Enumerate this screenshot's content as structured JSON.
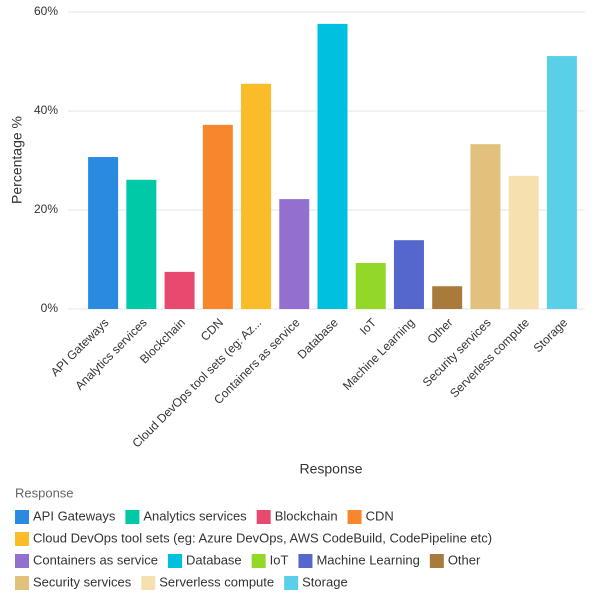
{
  "chart_data": {
    "type": "bar",
    "y_label": "Percentage %",
    "x_label": "Response",
    "legend_title": "Response",
    "categories": [
      "API Gateways",
      "Analytics services",
      "Blockchain",
      "CDN",
      "Cloud DevOps tool sets (eg: Azure DevOps, AWS CodeBuild, CodePipeline etc)",
      "Containers as service",
      "Database",
      "IoT",
      "Machine Learning",
      "Other",
      "Security services",
      "Serverless compute",
      "Storage"
    ],
    "x_tick_labels": [
      "API Gateways",
      "Analytics services",
      "Blockchain",
      "CDN",
      "Cloud DevOps tool sets (eg: Az...",
      "Containers as service",
      "Database",
      "IoT",
      "Machine Learning",
      "Other",
      "Security services",
      "Serverless compute",
      "Storage"
    ],
    "values": [
      30.7,
      26.1,
      7.5,
      37.2,
      45.5,
      22.2,
      57.6,
      9.3,
      13.9,
      4.6,
      33.3,
      26.9,
      51.1
    ],
    "colors": [
      "#2a8ae0",
      "#00c9a7",
      "#e84a6f",
      "#f8862c",
      "#fbbc2a",
      "#9370cf",
      "#00c0e0",
      "#93d827",
      "#5566cc",
      "#a97a3c",
      "#e2c17d",
      "#f6e0b0",
      "#5ad0e8"
    ],
    "ylim": [
      0,
      60
    ],
    "yticks": [
      {
        "value": 0,
        "label": "0%"
      },
      {
        "value": 20,
        "label": "20%"
      },
      {
        "value": 40,
        "label": "40%"
      },
      {
        "value": 60,
        "label": "60%"
      }
    ],
    "grid": true
  }
}
